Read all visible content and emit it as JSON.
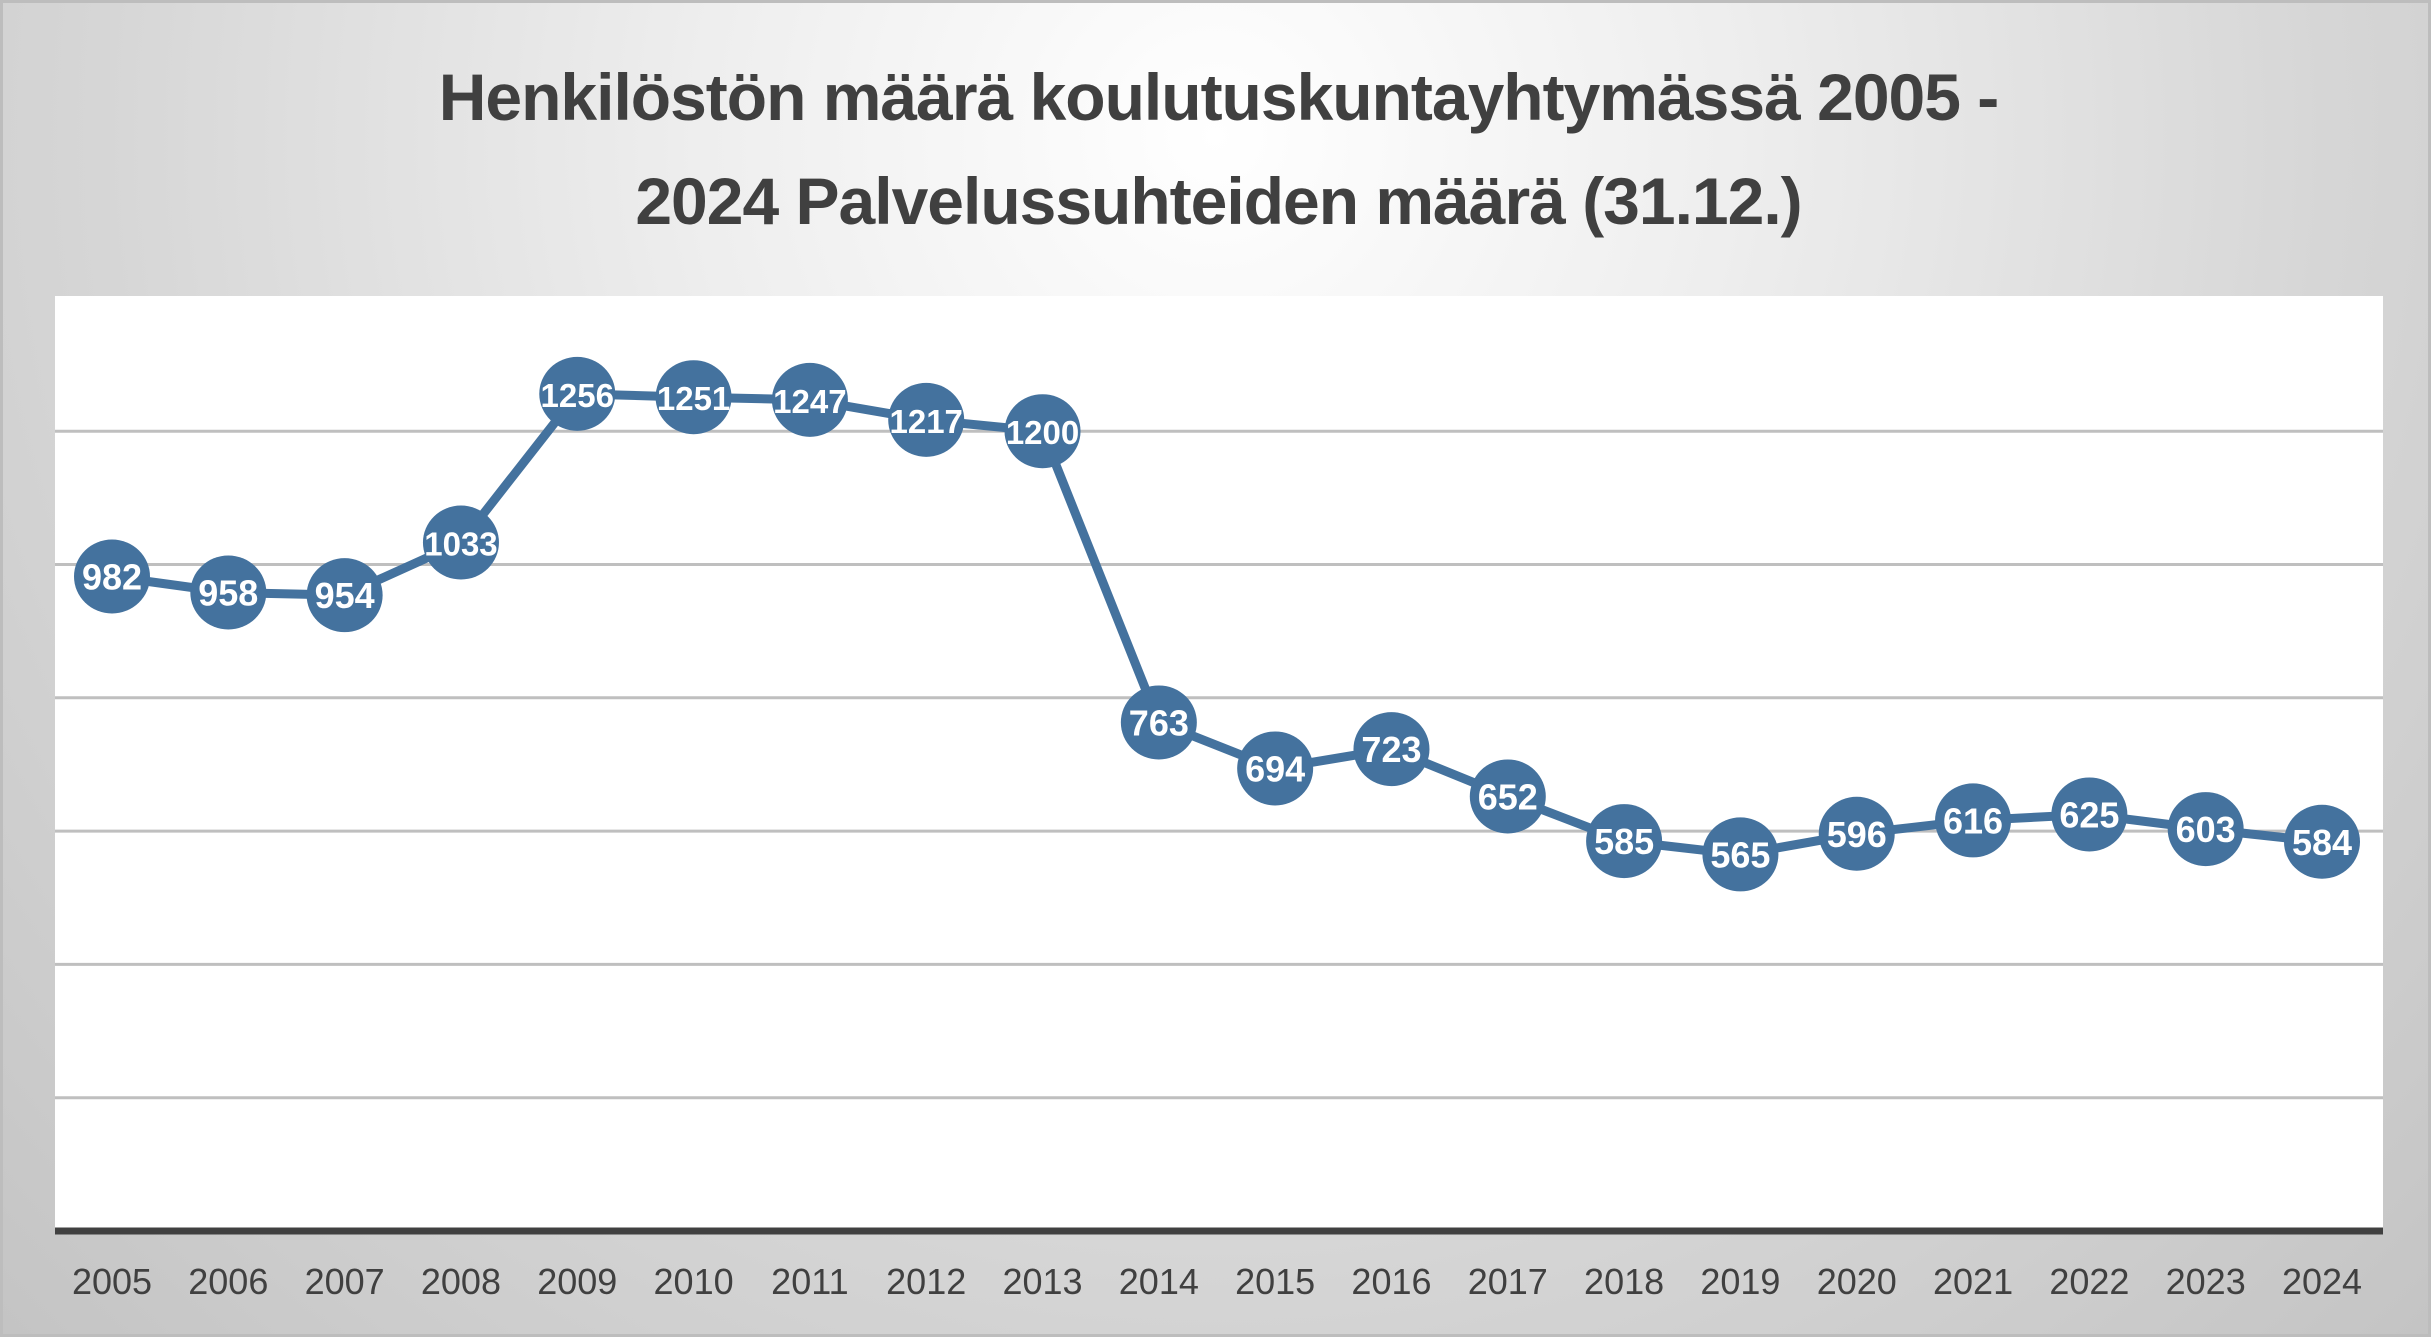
{
  "title": {
    "line1": "Henkilöstön määrä koulutuskuntayhtymässä 2005 -",
    "line2": "2024 Palvelussuhteiden määrä (31.12.)"
  },
  "colors": {
    "series": "#44729E",
    "label_text": "#FFFFFF",
    "gridline": "#BFBFBF",
    "axis": "#404040",
    "title": "#404040",
    "plot_bg": "#FFFFFF"
  },
  "chart_data": {
    "type": "line",
    "title": "Henkilöstön määrä koulutuskuntayhtymässä 2005 - 2024 Palvelussuhteiden määrä (31.12.)",
    "xlabel": "",
    "ylabel": "",
    "categories": [
      "2005",
      "2006",
      "2007",
      "2008",
      "2009",
      "2010",
      "2011",
      "2012",
      "2013",
      "2014",
      "2015",
      "2016",
      "2017",
      "2018",
      "2019",
      "2020",
      "2021",
      "2022",
      "2023",
      "2024"
    ],
    "series": [
      {
        "name": "Palvelussuhteiden määrä",
        "values": [
          982,
          958,
          954,
          1033,
          1256,
          1251,
          1247,
          1217,
          1200,
          763,
          694,
          723,
          652,
          585,
          565,
          596,
          616,
          625,
          603,
          584
        ]
      }
    ],
    "ylim": [
      0,
      1400
    ],
    "gridlines": [
      200,
      400,
      600,
      800,
      1000,
      1200
    ],
    "y_tick_labels_visible": false,
    "grid": true,
    "legend": "none",
    "data_labels": "inside circular markers"
  }
}
